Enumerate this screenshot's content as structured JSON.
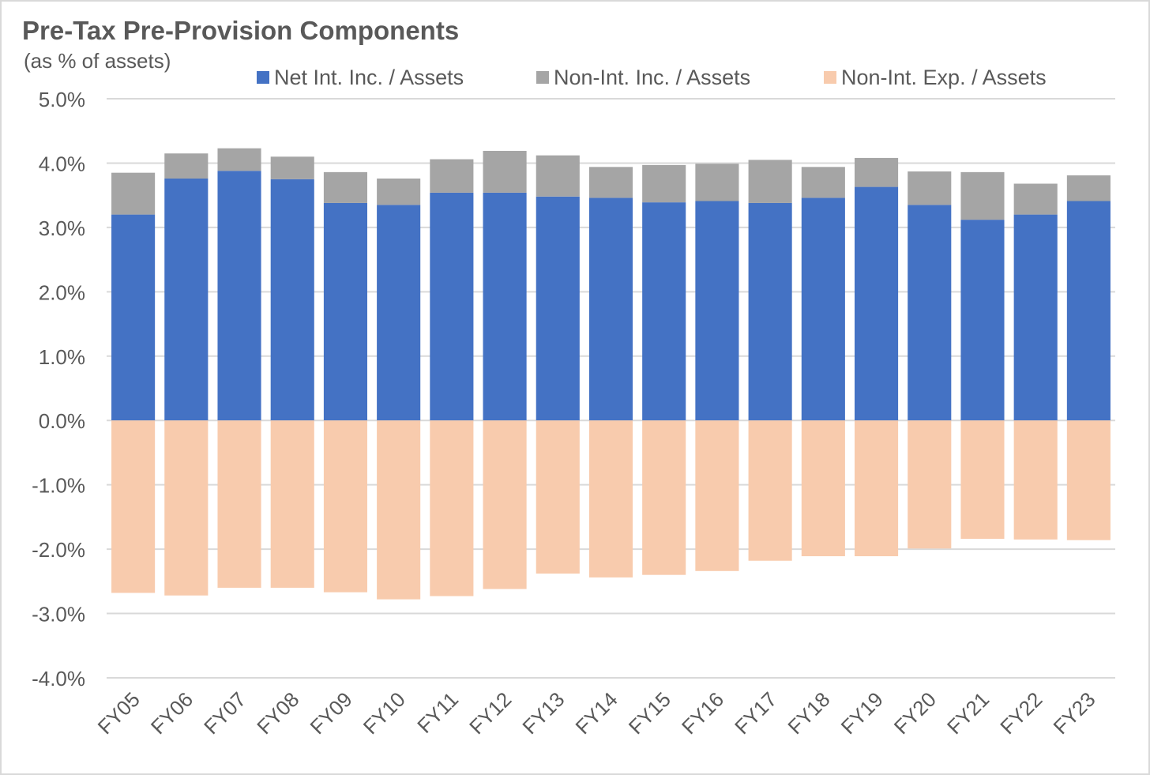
{
  "chart_data": {
    "type": "bar",
    "stacked": true,
    "title": "Pre-Tax Pre-Provision Components",
    "subtitle": "(as % of assets)",
    "categories": [
      "FY05",
      "FY06",
      "FY07",
      "FY08",
      "FY09",
      "FY10",
      "FY11",
      "FY12",
      "FY13",
      "FY14",
      "FY15",
      "FY16",
      "FY17",
      "FY18",
      "FY19",
      "FY20",
      "FY21",
      "FY22",
      "FY23"
    ],
    "series": [
      {
        "name": "Net Int. Inc. / Assets",
        "color": "#4472c4",
        "values": [
          3.2,
          3.76,
          3.88,
          3.75,
          3.38,
          3.35,
          3.54,
          3.54,
          3.48,
          3.46,
          3.39,
          3.41,
          3.38,
          3.46,
          3.63,
          3.35,
          3.12,
          3.2,
          3.41
        ]
      },
      {
        "name": "Non-Int. Inc. / Assets",
        "color": "#a5a5a5",
        "values": [
          0.65,
          0.39,
          0.35,
          0.35,
          0.48,
          0.41,
          0.52,
          0.65,
          0.64,
          0.48,
          0.58,
          0.58,
          0.67,
          0.48,
          0.45,
          0.52,
          0.74,
          0.48,
          0.4
        ]
      },
      {
        "name": "Non-Int. Exp. / Assets",
        "color": "#f8cbad",
        "values": [
          -2.68,
          -2.72,
          -2.6,
          -2.6,
          -2.67,
          -2.78,
          -2.73,
          -2.62,
          -2.38,
          -2.44,
          -2.4,
          -2.34,
          -2.18,
          -2.11,
          -2.11,
          -1.99,
          -1.84,
          -1.85,
          -1.86
        ]
      }
    ],
    "y_tick_labels": [
      "5.0%",
      "4.0%",
      "3.0%",
      "2.0%",
      "1.0%",
      "0.0%",
      "-1.0%",
      "-2.0%",
      "-3.0%",
      "-4.0%"
    ],
    "ylim": [
      -4.0,
      5.0
    ],
    "y_unit": "%",
    "grid": true,
    "legend_position": "top"
  }
}
